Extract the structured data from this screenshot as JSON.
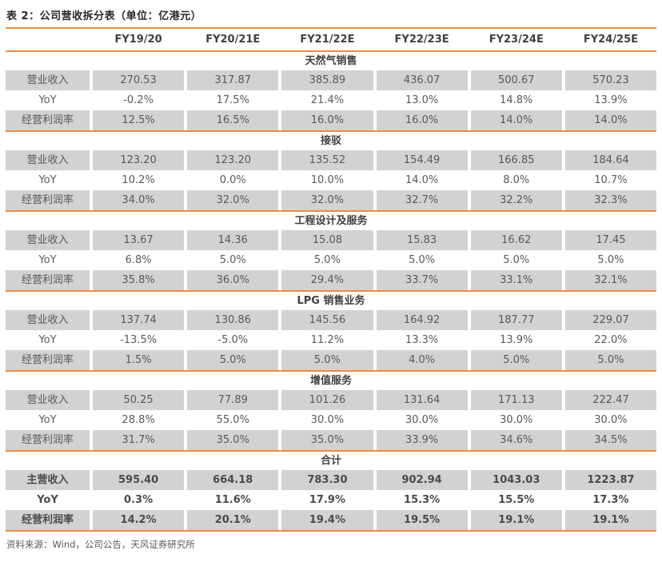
{
  "title": "表 2：公司营收拆分表（单位：亿港元）",
  "source": "资料来源：Wind，公司公告，天风证券研究所",
  "colors": {
    "accent_line": "#EE8C42",
    "row_shade": "#D2D2D2",
    "body_text": "#595959"
  },
  "columns": [
    "FY19/20",
    "FY20/21E",
    "FY21/22E",
    "FY22/23E",
    "FY23/24E",
    "FY24/25E"
  ],
  "sections": [
    {
      "name": "天然气销售",
      "emphasis": false,
      "rows": [
        {
          "label": "营业收入",
          "shaded": true,
          "values": [
            "270.53",
            "317.87",
            "385.89",
            "436.07",
            "500.67",
            "570.23"
          ]
        },
        {
          "label": "YoY",
          "shaded": false,
          "values": [
            "-0.2%",
            "17.5%",
            "21.4%",
            "13.0%",
            "14.8%",
            "13.9%"
          ]
        },
        {
          "label": "经营利润率",
          "shaded": true,
          "values": [
            "12.5%",
            "16.5%",
            "16.0%",
            "16.0%",
            "14.0%",
            "14.0%"
          ]
        }
      ]
    },
    {
      "name": "接驳",
      "emphasis": false,
      "rows": [
        {
          "label": "营业收入",
          "shaded": true,
          "values": [
            "123.20",
            "123.20",
            "135.52",
            "154.49",
            "166.85",
            "184.64"
          ]
        },
        {
          "label": "YoY",
          "shaded": false,
          "values": [
            "10.2%",
            "0.0%",
            "10.0%",
            "14.0%",
            "8.0%",
            "10.7%"
          ]
        },
        {
          "label": "经营利润率",
          "shaded": true,
          "values": [
            "34.0%",
            "32.0%",
            "32.0%",
            "32.7%",
            "32.2%",
            "32.3%"
          ]
        }
      ]
    },
    {
      "name": "工程设计及服务",
      "emphasis": false,
      "rows": [
        {
          "label": "营业收入",
          "shaded": true,
          "values": [
            "13.67",
            "14.36",
            "15.08",
            "15.83",
            "16.62",
            "17.45"
          ]
        },
        {
          "label": "YoY",
          "shaded": false,
          "values": [
            "6.8%",
            "5.0%",
            "5.0%",
            "5.0%",
            "5.0%",
            "5.0%"
          ]
        },
        {
          "label": "经营利润率",
          "shaded": true,
          "values": [
            "35.8%",
            "36.0%",
            "29.4%",
            "33.7%",
            "33.1%",
            "32.1%"
          ]
        }
      ]
    },
    {
      "name": "LPG 销售业务",
      "emphasis": false,
      "rows": [
        {
          "label": "营业收入",
          "shaded": true,
          "values": [
            "137.74",
            "130.86",
            "145.56",
            "164.92",
            "187.77",
            "229.07"
          ]
        },
        {
          "label": "YoY",
          "shaded": false,
          "values": [
            "-13.5%",
            "-5.0%",
            "11.2%",
            "13.3%",
            "13.9%",
            "22.0%"
          ]
        },
        {
          "label": "经营利润率",
          "shaded": true,
          "values": [
            "1.5%",
            "5.0%",
            "5.0%",
            "4.0%",
            "5.0%",
            "5.0%"
          ]
        }
      ]
    },
    {
      "name": "增值服务",
      "emphasis": false,
      "rows": [
        {
          "label": "营业收入",
          "shaded": true,
          "values": [
            "50.25",
            "77.89",
            "101.26",
            "131.64",
            "171.13",
            "222.47"
          ]
        },
        {
          "label": "YoY",
          "shaded": false,
          "values": [
            "28.8%",
            "55.0%",
            "30.0%",
            "30.0%",
            "30.0%",
            "30.0%"
          ]
        },
        {
          "label": "经营利润率",
          "shaded": true,
          "values": [
            "31.7%",
            "35.0%",
            "35.0%",
            "33.9%",
            "34.6%",
            "34.5%"
          ]
        }
      ]
    },
    {
      "name": "合计",
      "emphasis": true,
      "rows": [
        {
          "label": "主营收入",
          "shaded": true,
          "values": [
            "595.40",
            "664.18",
            "783.30",
            "902.94",
            "1043.03",
            "1223.87"
          ]
        },
        {
          "label": "YoY",
          "shaded": false,
          "values": [
            "0.3%",
            "11.6%",
            "17.9%",
            "15.3%",
            "15.5%",
            "17.3%"
          ]
        },
        {
          "label": "经营利润率",
          "shaded": true,
          "values": [
            "14.2%",
            "20.1%",
            "19.4%",
            "19.5%",
            "19.1%",
            "19.1%"
          ]
        }
      ]
    }
  ]
}
